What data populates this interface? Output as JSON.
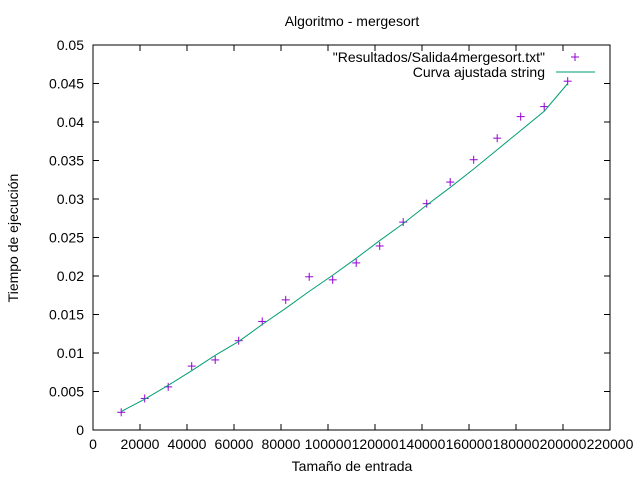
{
  "chart_data": {
    "type": "scatter",
    "title": "Algoritmo - mergesort",
    "xlabel": "Tamaño de entrada",
    "ylabel": "Tiempo de ejecución",
    "xlim": [
      0,
      220000
    ],
    "ylim": [
      0,
      0.05
    ],
    "x_ticks": [
      "0",
      "20000",
      "40000",
      "60000",
      "80000",
      "100000",
      "120000",
      "140000",
      "160000",
      "180000",
      "200000",
      "220000"
    ],
    "y_ticks": [
      "0",
      "0.005",
      "0.01",
      "0.015",
      "0.02",
      "0.025",
      "0.03",
      "0.035",
      "0.04",
      "0.045",
      "0.05"
    ],
    "grid": false,
    "legend_position": "top-right",
    "series": [
      {
        "name": "\"Resultados/Salida4mergesort.txt\"",
        "type": "scatter",
        "marker": "+",
        "color": "#9400d3",
        "x": [
          12000,
          22000,
          32000,
          42000,
          52000,
          62000,
          72000,
          82000,
          92000,
          102000,
          112000,
          122000,
          132000,
          142000,
          152000,
          162000,
          172000,
          182000,
          192000,
          202000
        ],
        "y": [
          0.0023,
          0.0041,
          0.0056,
          0.0083,
          0.0091,
          0.0116,
          0.0141,
          0.0169,
          0.0199,
          0.0195,
          0.0217,
          0.0239,
          0.027,
          0.0294,
          0.0322,
          0.0351,
          0.0379,
          0.0407,
          0.042,
          0.0453
        ]
      },
      {
        "name": "Curva ajustada string",
        "type": "line",
        "color": "#009e73",
        "x": [
          12000,
          22000,
          32000,
          42000,
          52000,
          62000,
          72000,
          82000,
          92000,
          102000,
          112000,
          122000,
          132000,
          142000,
          152000,
          162000,
          172000,
          182000,
          192000,
          202000
        ],
        "y": [
          0.0024,
          0.004,
          0.0058,
          0.0077,
          0.0097,
          0.0115,
          0.0137,
          0.0158,
          0.018,
          0.0201,
          0.0223,
          0.0246,
          0.0268,
          0.0292,
          0.0315,
          0.0339,
          0.0364,
          0.0389,
          0.0414,
          0.045
        ]
      }
    ]
  }
}
